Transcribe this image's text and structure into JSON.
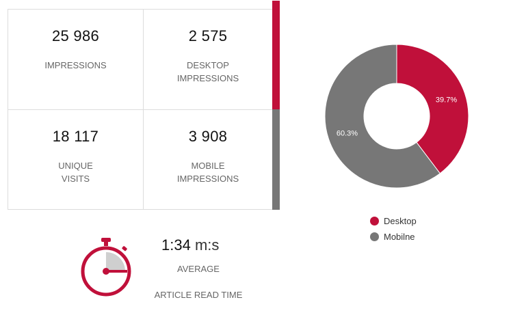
{
  "colors": {
    "accent": "#c0103a",
    "secondary": "#777777"
  },
  "stats": [
    {
      "value": "25 986",
      "label": "IMPRESSIONS"
    },
    {
      "value": "2 575",
      "label": "DESKTOP\nIMPRESSIONS"
    },
    {
      "value": "18 117",
      "label": "UNIQUE\nVISITS"
    },
    {
      "value": "3 908",
      "label": "MOBILE\nIMPRESSIONS"
    }
  ],
  "read_time": {
    "value": "1:34",
    "unit": "m:s",
    "label_line1": "AVERAGE",
    "label_line2": "ARTICLE READ TIME"
  },
  "chart_data": {
    "type": "pie",
    "donut": true,
    "series": [
      {
        "name": "Desktop",
        "value": 39.7,
        "label": "39.7%",
        "color": "#c0103a"
      },
      {
        "name": "Mobilne",
        "value": 60.3,
        "label": "60.3%",
        "color": "#777777"
      }
    ],
    "legend": "bottom"
  }
}
